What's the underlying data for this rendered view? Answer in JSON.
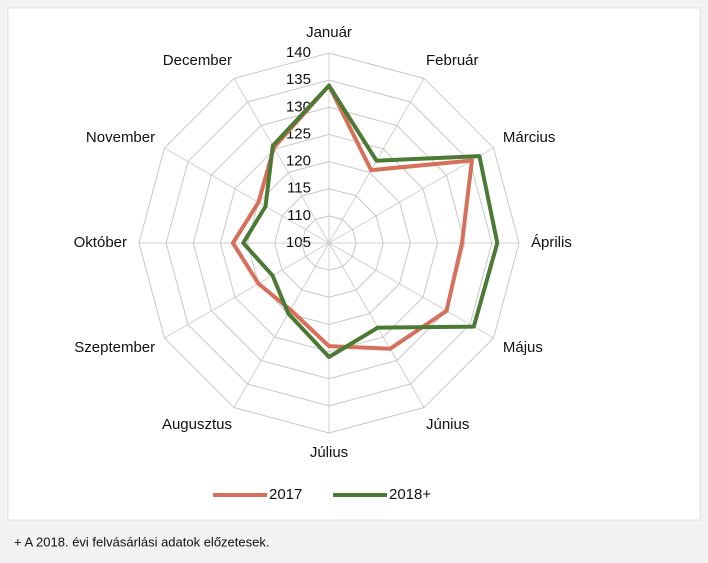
{
  "chart_data": {
    "type": "radar",
    "categories": [
      "Január",
      "Február",
      "Március",
      "Április",
      "Május",
      "Június",
      "Július",
      "Augusztus",
      "Szeptember",
      "Október",
      "November",
      "December"
    ],
    "series": [
      {
        "name": "2017",
        "color": "#d6705a",
        "values": [
          134,
          120.5,
          135.4,
          129.5,
          130,
          127.5,
          124,
          119.2,
          120,
          122.7,
          120,
          125.3
        ]
      },
      {
        "name": "2018+",
        "color": "#4a7a34",
        "values": [
          134,
          122.5,
          137,
          136,
          135.8,
          123,
          126,
          120,
          117,
          120.8,
          118.5,
          125.7
        ]
      }
    ],
    "ylim": [
      105,
      140
    ],
    "yticks": [
      105,
      110,
      115,
      120,
      125,
      130,
      135,
      140
    ],
    "grid": true,
    "legend": "bottom",
    "footnote": "+ A 2018. évi felvásárlási adatok előzetesek."
  }
}
